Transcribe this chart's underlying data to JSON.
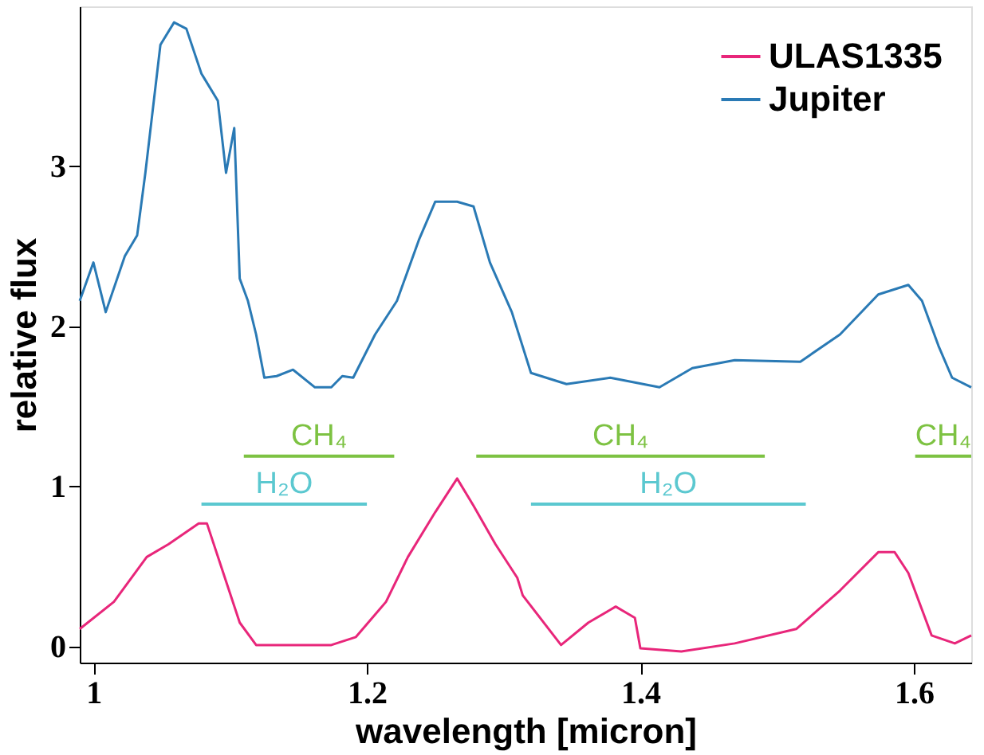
{
  "chart_data": {
    "type": "line",
    "xlabel": "wavelength [micron]",
    "ylabel": "relative flux",
    "xlim": [
      0.99,
      1.642
    ],
    "ylim": [
      -0.1,
      4.0
    ],
    "xticks": [
      1,
      1.2,
      1.4,
      1.6
    ],
    "yticks": [
      0,
      1,
      2,
      3
    ],
    "grid": false,
    "legend": "top right",
    "marker": "none",
    "line_style": "solid",
    "series": [
      {
        "name": "ULAS1335",
        "color": "#e8267a",
        "x": [
          0.99,
          1.015,
          1.039,
          1.055,
          1.077,
          1.083,
          1.095,
          1.107,
          1.119,
          1.146,
          1.174,
          1.192,
          1.214,
          1.23,
          1.25,
          1.266,
          1.278,
          1.294,
          1.31,
          1.314,
          1.342,
          1.362,
          1.382,
          1.396,
          1.4,
          1.43,
          1.469,
          1.514,
          1.546,
          1.574,
          1.586,
          1.596,
          1.613,
          1.63,
          1.642
        ],
        "values": [
          0.11,
          0.28,
          0.56,
          0.64,
          0.77,
          0.77,
          0.46,
          0.15,
          0.01,
          0.01,
          0.01,
          0.06,
          0.28,
          0.56,
          0.84,
          1.05,
          0.88,
          0.64,
          0.43,
          0.32,
          0.01,
          0.15,
          0.25,
          0.18,
          -0.01,
          -0.03,
          0.02,
          0.11,
          0.35,
          0.59,
          0.59,
          0.46,
          0.07,
          0.02,
          0.07
        ]
      },
      {
        "name": "Jupiter",
        "color": "#2a7ab5",
        "x": [
          0.99,
          1.0,
          1.009,
          1.023,
          1.032,
          1.038,
          1.049,
          1.059,
          1.068,
          1.079,
          1.091,
          1.097,
          1.103,
          1.107,
          1.113,
          1.119,
          1.125,
          1.134,
          1.146,
          1.162,
          1.174,
          1.182,
          1.19,
          1.206,
          1.222,
          1.238,
          1.25,
          1.266,
          1.278,
          1.29,
          1.306,
          1.32,
          1.346,
          1.378,
          1.414,
          1.438,
          1.469,
          1.517,
          1.546,
          1.574,
          1.596,
          1.606,
          1.618,
          1.628,
          1.642
        ],
        "values": [
          2.16,
          2.4,
          2.09,
          2.44,
          2.57,
          2.96,
          3.76,
          3.9,
          3.86,
          3.58,
          3.41,
          2.96,
          3.24,
          2.3,
          2.16,
          1.95,
          1.68,
          1.69,
          1.73,
          1.62,
          1.62,
          1.69,
          1.68,
          1.95,
          2.16,
          2.54,
          2.78,
          2.78,
          2.75,
          2.4,
          2.09,
          1.71,
          1.64,
          1.68,
          1.62,
          1.74,
          1.79,
          1.78,
          1.95,
          2.2,
          2.26,
          2.16,
          1.88,
          1.68,
          1.62
        ]
      },
      {
        "type": "line",
        "color": "#7dc242",
        "x": [
          1.11,
          1.22
        ],
        "values": [
          1.19,
          1.19
        ]
      },
      {
        "type": "line",
        "color": "#7dc242",
        "x": [
          1.28,
          1.491
        ],
        "values": [
          1.19,
          1.19
        ]
      },
      {
        "type": "line",
        "color": "#7dc242",
        "x": [
          1.601,
          1.642
        ],
        "values": [
          1.19,
          1.19
        ]
      },
      {
        "type": "line",
        "color": "#5bc8d0",
        "x": [
          1.079,
          1.2
        ],
        "values": [
          0.89,
          0.89
        ]
      },
      {
        "type": "line",
        "color": "#5bc8d0",
        "x": [
          1.32,
          1.521
        ],
        "values": [
          0.89,
          0.89
        ]
      }
    ],
    "annotations": [
      "CH₄",
      "CH₄",
      "CH₄",
      "H₂O",
      "H₂O"
    ]
  }
}
